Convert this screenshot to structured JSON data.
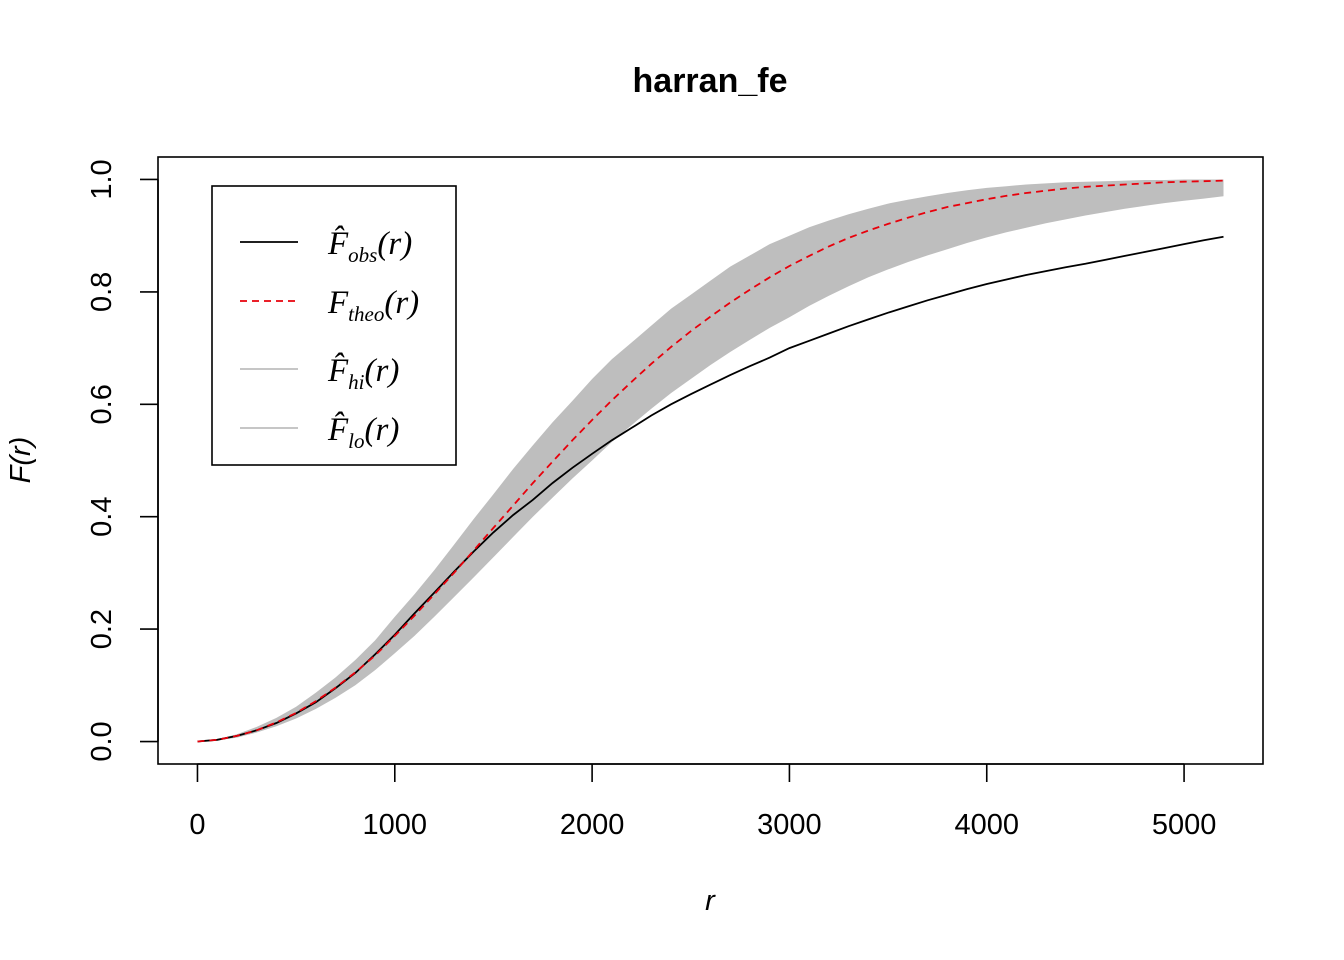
{
  "chart_data": {
    "type": "line",
    "title": "harran_fe",
    "xlabel": "r",
    "ylabel": "F(r)",
    "xlim": [
      -200,
      5400
    ],
    "ylim": [
      -0.04,
      1.04
    ],
    "xticks": [
      0,
      1000,
      2000,
      3000,
      4000,
      5000
    ],
    "xtick_labels": [
      "0",
      "1000",
      "2000",
      "3000",
      "4000",
      "5000"
    ],
    "yticks": [
      0.0,
      0.2,
      0.4,
      0.6,
      0.8,
      1.0
    ],
    "ytick_labels": [
      "0.0",
      "0.2",
      "0.4",
      "0.6",
      "0.8",
      "1.0"
    ],
    "legend_position": "top-left",
    "x": [
      0,
      100,
      200,
      300,
      400,
      500,
      600,
      700,
      800,
      900,
      1000,
      1100,
      1200,
      1300,
      1400,
      1500,
      1600,
      1700,
      1800,
      1900,
      2000,
      2100,
      2200,
      2300,
      2400,
      2500,
      2600,
      2700,
      2800,
      2900,
      3000,
      3100,
      3200,
      3300,
      3400,
      3500,
      3600,
      3700,
      3800,
      3900,
      4000,
      4100,
      4200,
      4300,
      4400,
      4500,
      4600,
      4700,
      4800,
      4900,
      5000,
      5100,
      5200
    ],
    "series": [
      {
        "key": "obs",
        "legend_main": "F̂",
        "legend_sub": "obs",
        "legend_tail": "(r)",
        "color": "#000000",
        "dash": "solid",
        "values": [
          0,
          0.003,
          0.01,
          0.02,
          0.033,
          0.05,
          0.07,
          0.095,
          0.122,
          0.155,
          0.19,
          0.228,
          0.265,
          0.302,
          0.338,
          0.372,
          0.403,
          0.43,
          0.46,
          0.487,
          0.512,
          0.536,
          0.558,
          0.58,
          0.6,
          0.618,
          0.635,
          0.652,
          0.668,
          0.683,
          0.7,
          0.713,
          0.726,
          0.739,
          0.751,
          0.763,
          0.774,
          0.785,
          0.795,
          0.805,
          0.814,
          0.822,
          0.83,
          0.837,
          0.844,
          0.85,
          0.857,
          0.864,
          0.871,
          0.878,
          0.885,
          0.892,
          0.898
        ]
      },
      {
        "key": "theo",
        "legend_main": "F",
        "legend_sub": "theo",
        "legend_tail": "(r)",
        "color": "#e8000b",
        "dash": "dashed",
        "values": [
          0,
          0.003,
          0.01,
          0.02,
          0.034,
          0.051,
          0.072,
          0.096,
          0.123,
          0.153,
          0.188,
          0.224,
          0.262,
          0.3,
          0.34,
          0.38,
          0.42,
          0.46,
          0.498,
          0.536,
          0.572,
          0.607,
          0.64,
          0.672,
          0.702,
          0.73,
          0.756,
          0.781,
          0.804,
          0.826,
          0.846,
          0.864,
          0.881,
          0.896,
          0.909,
          0.921,
          0.932,
          0.942,
          0.951,
          0.958,
          0.965,
          0.971,
          0.976,
          0.98,
          0.984,
          0.987,
          0.989,
          0.991,
          0.993,
          0.995,
          0.996,
          0.997,
          0.998
        ]
      },
      {
        "key": "hi",
        "legend_main": "F̂",
        "legend_sub": "hi",
        "legend_tail": "(r)",
        "color": "#bebebe",
        "dash": "solid",
        "values": [
          0,
          0.004,
          0.013,
          0.026,
          0.042,
          0.062,
          0.087,
          0.114,
          0.145,
          0.18,
          0.222,
          0.262,
          0.305,
          0.35,
          0.396,
          0.44,
          0.485,
          0.527,
          0.568,
          0.606,
          0.645,
          0.68,
          0.71,
          0.74,
          0.77,
          0.795,
          0.82,
          0.845,
          0.865,
          0.885,
          0.9,
          0.915,
          0.927,
          0.938,
          0.948,
          0.957,
          0.964,
          0.97,
          0.976,
          0.981,
          0.985,
          0.988,
          0.991,
          0.993,
          0.995,
          0.996,
          0.997,
          0.998,
          0.999,
          0.999,
          1.0,
          1.0,
          1.0
        ]
      },
      {
        "key": "lo",
        "legend_main": "F̂",
        "legend_sub": "lo",
        "legend_tail": "(r)",
        "color": "#bebebe",
        "dash": "solid",
        "values": [
          0,
          0.002,
          0.007,
          0.016,
          0.027,
          0.041,
          0.058,
          0.078,
          0.1,
          0.127,
          0.157,
          0.188,
          0.222,
          0.257,
          0.292,
          0.328,
          0.364,
          0.4,
          0.434,
          0.468,
          0.5,
          0.533,
          0.563,
          0.592,
          0.62,
          0.645,
          0.67,
          0.693,
          0.715,
          0.736,
          0.755,
          0.775,
          0.793,
          0.81,
          0.826,
          0.84,
          0.853,
          0.865,
          0.876,
          0.887,
          0.897,
          0.906,
          0.914,
          0.922,
          0.929,
          0.936,
          0.942,
          0.948,
          0.953,
          0.958,
          0.962,
          0.966,
          0.97
        ]
      }
    ]
  }
}
